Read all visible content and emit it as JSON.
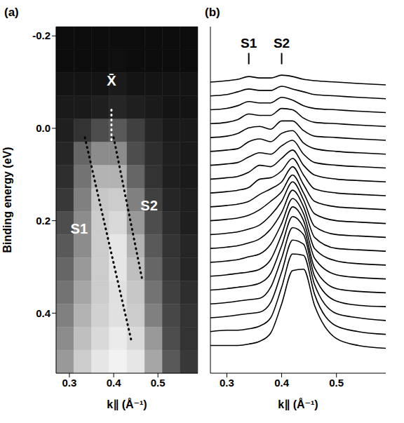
{
  "chart_data": [
    {
      "type": "heatmap",
      "panel": "(a)",
      "x_label": "k∥ (Å⁻¹)",
      "y_label": "Binding energy (eV)",
      "xlim": [
        0.27,
        0.59
      ],
      "xticks": [
        0.3,
        0.4,
        0.5
      ],
      "ylim": [
        -0.22,
        0.53
      ],
      "yticks": [
        -0.2,
        {
          "value": 0,
          "label": "0.0"
        },
        0.2,
        0.4
      ],
      "x_edges": [
        0.27,
        0.31,
        0.35,
        0.39,
        0.43,
        0.47,
        0.51,
        0.55,
        0.59
      ],
      "y_edges": [
        -0.22,
        -0.17,
        -0.12,
        -0.07,
        -0.02,
        0.03,
        0.08,
        0.13,
        0.18,
        0.23,
        0.28,
        0.33,
        0.38,
        0.43,
        0.48,
        0.53
      ],
      "intensity_range": [
        0,
        1
      ],
      "cells": [
        [
          0.05,
          0.05,
          0.05,
          0.05,
          0.05,
          0.05,
          0.05,
          0.05
        ],
        [
          0.05,
          0.05,
          0.05,
          0.06,
          0.05,
          0.05,
          0.05,
          0.05
        ],
        [
          0.08,
          0.08,
          0.08,
          0.1,
          0.08,
          0.08,
          0.08,
          0.08
        ],
        [
          0.1,
          0.1,
          0.12,
          0.15,
          0.12,
          0.1,
          0.08,
          0.08
        ],
        [
          0.12,
          0.2,
          0.3,
          0.35,
          0.25,
          0.15,
          0.1,
          0.1
        ],
        [
          0.15,
          0.4,
          0.55,
          0.55,
          0.3,
          0.18,
          0.12,
          0.1
        ],
        [
          0.18,
          0.45,
          0.7,
          0.7,
          0.4,
          0.2,
          0.12,
          0.1
        ],
        [
          0.22,
          0.5,
          0.78,
          0.8,
          0.5,
          0.25,
          0.15,
          0.12
        ],
        [
          0.3,
          0.55,
          0.8,
          0.85,
          0.6,
          0.3,
          0.18,
          0.12
        ],
        [
          0.35,
          0.55,
          0.8,
          0.9,
          0.7,
          0.35,
          0.2,
          0.15
        ],
        [
          0.4,
          0.6,
          0.8,
          0.9,
          0.75,
          0.4,
          0.22,
          0.15
        ],
        [
          0.45,
          0.65,
          0.8,
          0.88,
          0.78,
          0.45,
          0.25,
          0.18
        ],
        [
          0.5,
          0.7,
          0.82,
          0.88,
          0.8,
          0.5,
          0.28,
          0.2
        ],
        [
          0.55,
          0.75,
          0.85,
          0.92,
          0.85,
          0.6,
          0.3,
          0.2
        ],
        [
          0.6,
          0.8,
          0.9,
          0.95,
          0.9,
          0.65,
          0.35,
          0.22
        ]
      ],
      "series": [
        {
          "color": "#000000",
          "line_style": "dotted",
          "x": [
            0.335,
            0.44
          ],
          "y": [
            0.02,
            0.46
          ]
        },
        {
          "color": "#000000",
          "line_style": "dotted",
          "x": [
            0.4,
            0.465
          ],
          "y": [
            0.02,
            0.33
          ]
        },
        {
          "color": "#ffffff",
          "line_style": "dotted",
          "x": [
            0.395,
            0.395
          ],
          "y": [
            -0.04,
            0.03
          ]
        }
      ],
      "annotations": [
        {
          "text": "S1",
          "x": 0.322,
          "y": 0.22
        },
        {
          "text": "S2",
          "x": 0.48,
          "y": 0.17
        },
        {
          "text": "X̄",
          "x": 0.395,
          "y": -0.1
        }
      ]
    },
    {
      "type": "line",
      "panel": "(b)",
      "x_label": "k∥ (Å⁻¹)",
      "color": "#000000",
      "tick_labels": "x",
      "xlim": [
        0.27,
        0.59
      ],
      "xticks": [
        0.3,
        0.4,
        0.5
      ],
      "ylim": [
        0,
        25
      ],
      "x": [
        0.27,
        0.3,
        0.32,
        0.34,
        0.36,
        0.38,
        0.4,
        0.42,
        0.44,
        0.46,
        0.5,
        0.54,
        0.59
      ],
      "series": [
        {
          "values": [
            21.0,
            21.1,
            21.2,
            21.4,
            21.3,
            21.3,
            21.5,
            21.4,
            21.2,
            21.1,
            21.0,
            20.9,
            20.8
          ]
        },
        {
          "values": [
            20.0,
            20.1,
            20.3,
            20.5,
            20.4,
            20.4,
            20.7,
            20.5,
            20.3,
            20.1,
            20.0,
            19.9,
            19.8
          ]
        },
        {
          "values": [
            19.0,
            19.1,
            19.3,
            19.6,
            19.5,
            19.5,
            19.9,
            19.7,
            19.3,
            19.1,
            19.0,
            18.9,
            18.8
          ]
        },
        {
          "values": [
            18.0,
            18.1,
            18.3,
            18.7,
            18.6,
            18.6,
            19.1,
            19.0,
            18.4,
            18.1,
            18.0,
            17.9,
            17.8
          ]
        },
        {
          "values": [
            17.0,
            17.1,
            17.3,
            17.7,
            17.8,
            17.6,
            18.2,
            18.2,
            17.5,
            17.1,
            17.0,
            16.9,
            16.8
          ]
        },
        {
          "values": [
            16.0,
            16.1,
            16.2,
            16.7,
            16.9,
            16.7,
            17.3,
            17.5,
            16.6,
            16.2,
            16.0,
            15.9,
            15.8
          ]
        },
        {
          "values": [
            15.0,
            15.1,
            15.2,
            15.6,
            15.9,
            15.8,
            16.4,
            16.8,
            15.8,
            15.2,
            15.0,
            14.9,
            14.8
          ]
        },
        {
          "values": [
            14.0,
            14.1,
            14.2,
            14.5,
            15.0,
            14.9,
            15.5,
            16.1,
            15.0,
            14.3,
            14.0,
            13.9,
            13.8
          ]
        },
        {
          "values": [
            13.0,
            13.1,
            13.2,
            13.4,
            14.0,
            14.1,
            14.6,
            15.5,
            14.3,
            13.3,
            13.0,
            12.9,
            12.8
          ]
        },
        {
          "values": [
            12.0,
            12.1,
            12.2,
            12.4,
            12.9,
            13.3,
            13.8,
            14.9,
            13.6,
            12.4,
            12.0,
            11.9,
            11.8
          ]
        },
        {
          "values": [
            11.0,
            11.1,
            11.2,
            11.4,
            11.8,
            12.4,
            13.1,
            14.3,
            13.0,
            11.5,
            11.0,
            10.9,
            10.8
          ]
        },
        {
          "values": [
            10.0,
            10.1,
            10.2,
            10.4,
            10.7,
            11.4,
            12.4,
            13.8,
            12.5,
            10.6,
            10.0,
            9.9,
            9.8
          ]
        },
        {
          "values": [
            9.0,
            9.1,
            9.2,
            9.4,
            9.7,
            10.4,
            11.6,
            13.2,
            12.0,
            9.8,
            9.0,
            8.9,
            8.8
          ]
        },
        {
          "values": [
            8.0,
            8.1,
            8.2,
            8.4,
            8.6,
            9.3,
            10.8,
            12.6,
            11.5,
            9.0,
            8.1,
            7.9,
            7.8
          ]
        },
        {
          "values": [
            7.0,
            7.1,
            7.2,
            7.3,
            7.5,
            8.2,
            10.0,
            12.0,
            11.0,
            8.3,
            7.1,
            6.9,
            6.8
          ]
        },
        {
          "values": [
            6.0,
            6.1,
            6.2,
            6.3,
            6.5,
            7.2,
            9.2,
            11.3,
            10.5,
            7.6,
            6.1,
            5.9,
            5.8
          ]
        },
        {
          "values": [
            5.0,
            5.1,
            5.2,
            5.3,
            5.4,
            6.2,
            8.3,
            10.5,
            10.0,
            7.0,
            5.2,
            4.9,
            4.8
          ]
        },
        {
          "values": [
            4.0,
            4.1,
            4.2,
            4.3,
            4.4,
            5.1,
            7.3,
            9.6,
            9.3,
            6.4,
            4.3,
            4.0,
            3.8
          ]
        },
        {
          "values": [
            3.0,
            3.1,
            3.1,
            3.2,
            3.4,
            4.0,
            6.2,
            8.6,
            8.5,
            5.7,
            3.4,
            3.0,
            2.8
          ]
        },
        {
          "values": [
            2.0,
            2.0,
            2.0,
            2.1,
            2.3,
            2.9,
            5.0,
            7.4,
            7.5,
            4.9,
            2.5,
            2.0,
            1.8
          ]
        }
      ],
      "annotations": [
        {
          "text": "S1",
          "x": 0.34,
          "y": 23.2
        },
        {
          "text": "S2",
          "x": 0.4,
          "y": 23.2
        }
      ]
    }
  ]
}
